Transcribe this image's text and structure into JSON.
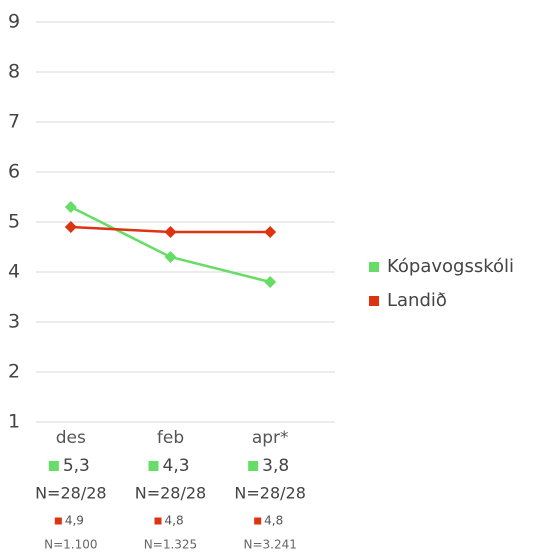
{
  "chart_data": {
    "type": "line",
    "categories": [
      "des",
      "feb",
      "apr*"
    ],
    "series": [
      {
        "name": "Kópavogsskóli",
        "color": "#66dd66",
        "values": [
          5.3,
          4.3,
          3.8
        ],
        "value_labels": [
          "5,3",
          "4,3",
          "3,8"
        ],
        "n_labels": [
          "N=28/28",
          "N=28/28",
          "N=28/28"
        ]
      },
      {
        "name": "Landið",
        "color": "#dd3311",
        "values": [
          4.9,
          4.8,
          4.8
        ],
        "value_labels": [
          "4,9",
          "4,8",
          "4,8"
        ],
        "n_labels": [
          "N=1.100",
          "N=1.325",
          "N=3.241"
        ]
      }
    ],
    "ylim": [
      1,
      9
    ],
    "yticks": [
      1,
      2,
      3,
      4,
      5,
      6,
      7,
      8,
      9
    ],
    "grid": true,
    "legend": "right"
  }
}
